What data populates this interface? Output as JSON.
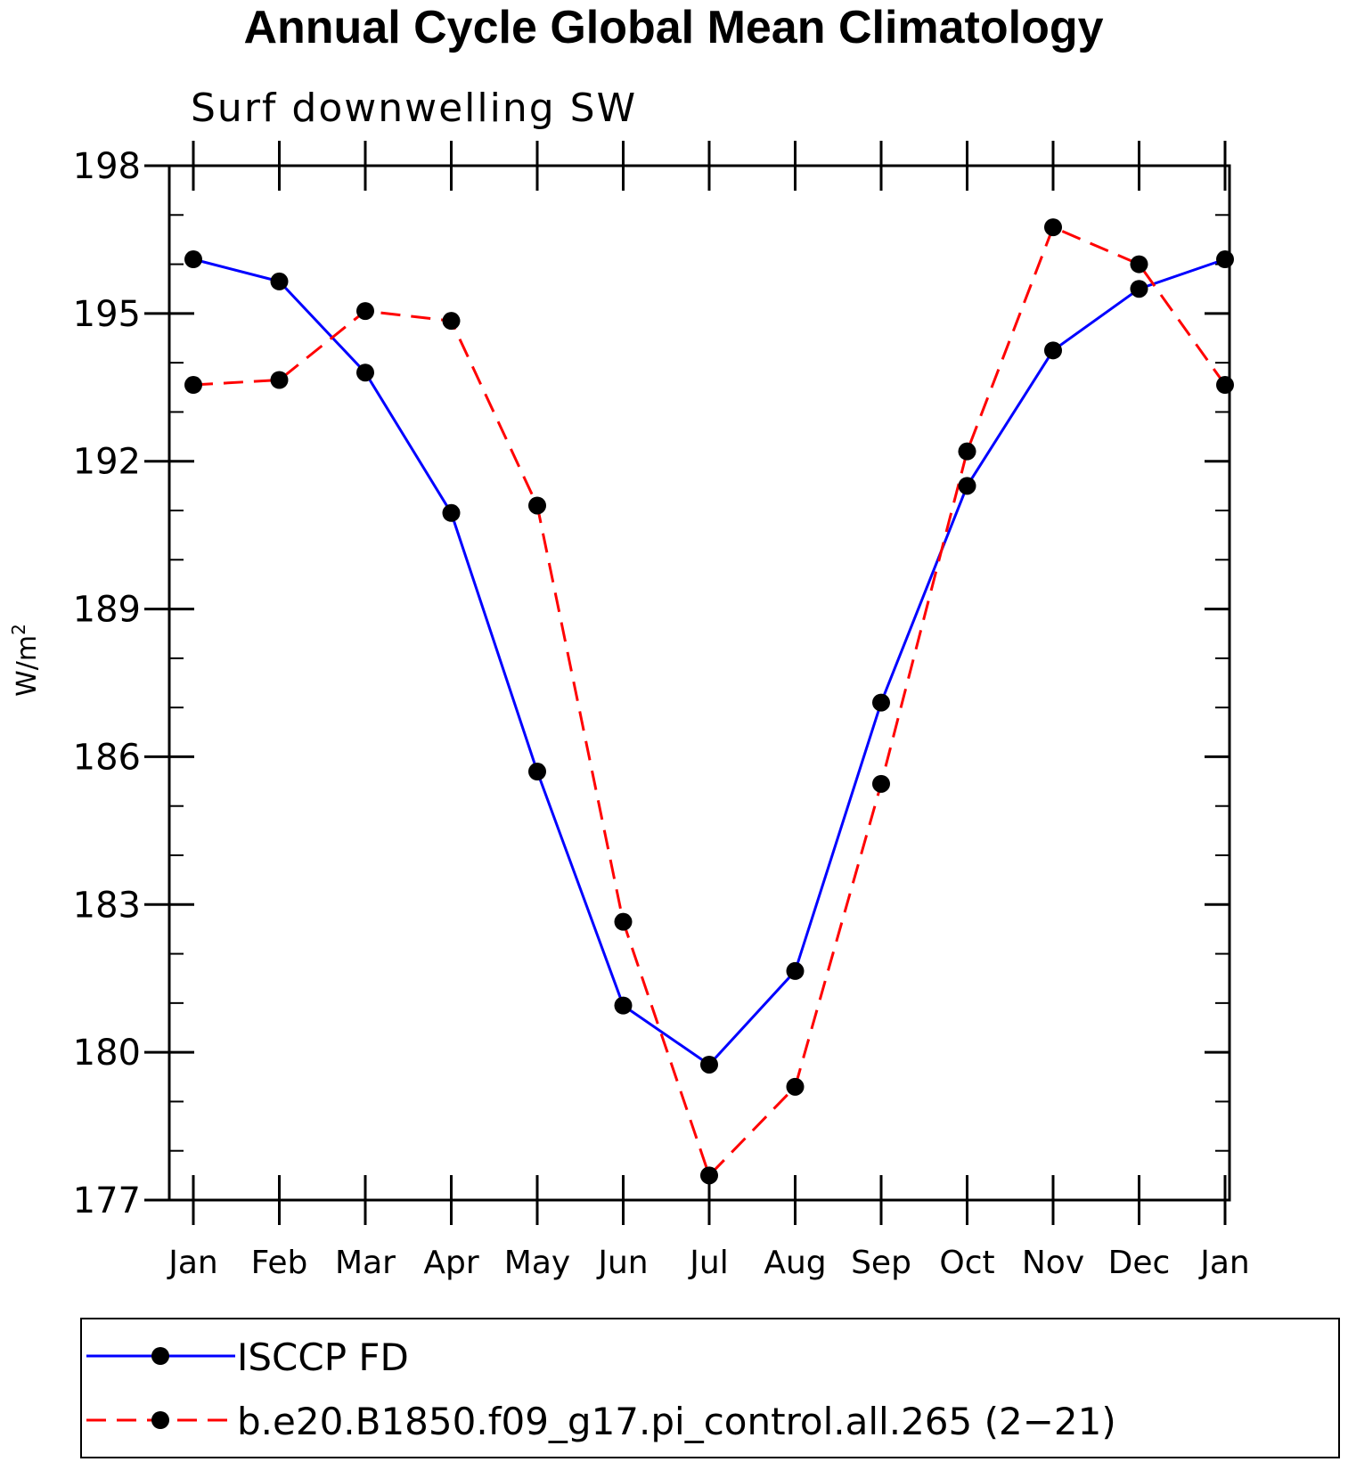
{
  "chart_data": {
    "type": "line",
    "title": "Annual Cycle Global Mean Climatology",
    "subtitle": "Surf downwelling SW",
    "ylabel": "W/m",
    "ylabel_superscript": "2",
    "ylim": [
      177,
      198
    ],
    "yticks": [
      "177",
      "180",
      "183",
      "186",
      "189",
      "192",
      "195",
      "198"
    ],
    "ytick_values": [
      177,
      180,
      183,
      186,
      189,
      192,
      195,
      198
    ],
    "categories": [
      "Jan",
      "Feb",
      "Mar",
      "Apr",
      "May",
      "Jun",
      "Jul",
      "Aug",
      "Sep",
      "Oct",
      "Nov",
      "Dec",
      "Jan"
    ],
    "series": [
      {
        "name": "ISCCP FD",
        "color": "#0000ff",
        "dashed": false,
        "values": [
          196.1,
          195.65,
          193.8,
          190.95,
          185.7,
          180.95,
          179.75,
          181.65,
          187.1,
          191.5,
          194.25,
          195.5,
          196.1
        ]
      },
      {
        "name": "b.e20.B1850.f09_g17.pi_control.all.265 (2−21)",
        "color": "#ff0000",
        "dashed": true,
        "values": [
          193.55,
          193.65,
          195.05,
          194.85,
          191.1,
          182.65,
          177.5,
          179.3,
          185.45,
          192.2,
          196.75,
          196.0,
          193.55
        ]
      }
    ]
  }
}
